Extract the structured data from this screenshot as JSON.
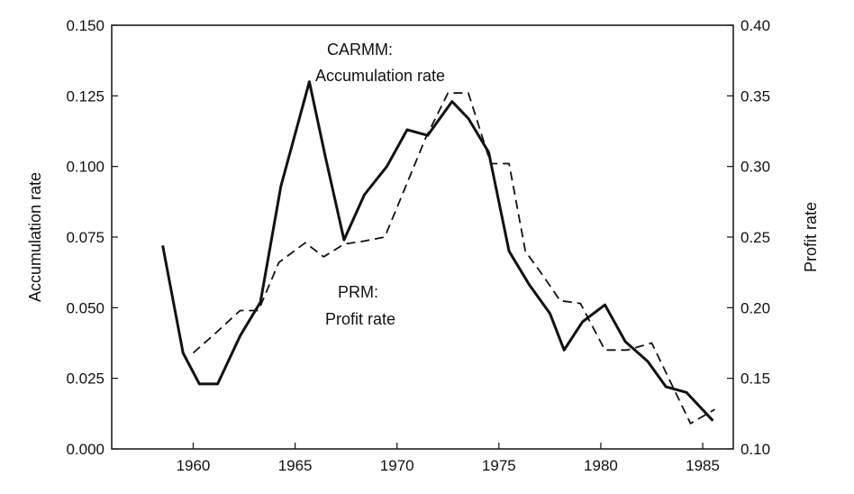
{
  "chart_data": {
    "type": "line",
    "title": "",
    "xlabel": "",
    "ylabel_left": "Accumulation rate",
    "ylabel_right": "Profit rate",
    "xlim": [
      1956,
      1986.5
    ],
    "ylim_left": [
      0.0,
      0.15
    ],
    "ylim_right": [
      0.1,
      0.4
    ],
    "grid": false,
    "x_ticks": [
      1960,
      1965,
      1970,
      1975,
      1980,
      1985
    ],
    "x_tick_labels": [
      "1960",
      "1965",
      "1970",
      "1975",
      "1980",
      "1985"
    ],
    "y_left_ticks": [
      0.0,
      0.025,
      0.05,
      0.075,
      0.1,
      0.125,
      0.15
    ],
    "y_left_tick_labels": [
      "0.000",
      "0.025",
      "0.050",
      "0.075",
      "0.100",
      "0.125",
      "0.150"
    ],
    "y_right_ticks": [
      0.1,
      0.15,
      0.2,
      0.25,
      0.3,
      0.35,
      0.4
    ],
    "y_right_tick_labels": [
      "0.10",
      "0.15",
      "0.20",
      "0.25",
      "0.30",
      "0.35",
      "0.40"
    ],
    "annotations": [
      {
        "lines": [
          "CARMM:",
          "Accumulation rate"
        ]
      },
      {
        "lines": [
          "PRM:",
          "Profit rate"
        ]
      }
    ],
    "series": [
      {
        "axis": "left",
        "style": "solid",
        "x": [
          1958.5,
          1959.5,
          1960.3,
          1961.2,
          1962.3,
          1963.3,
          1964.3,
          1965.7,
          1966.5,
          1967.4,
          1968.4,
          1969.5,
          1970.5,
          1971.5,
          1972.7,
          1973.5,
          1974.5,
          1975.5,
          1976.5,
          1977.5,
          1978.2,
          1979.1,
          1980.2,
          1981.2,
          1982.3,
          1983.2,
          1984.2,
          1985.5
        ],
        "y": [
          0.072,
          0.034,
          0.023,
          0.023,
          0.04,
          0.052,
          0.093,
          0.13,
          0.103,
          0.074,
          0.09,
          0.1,
          0.113,
          0.111,
          0.123,
          0.117,
          0.105,
          0.07,
          0.058,
          0.048,
          0.035,
          0.045,
          0.051,
          0.038,
          0.031,
          0.022,
          0.02,
          0.01
        ]
      },
      {
        "axis": "right",
        "style": "dashed",
        "x": [
          1960.0,
          1961.1,
          1962.3,
          1963.2,
          1964.2,
          1965.5,
          1966.4,
          1967.4,
          1968.3,
          1969.4,
          1970.4,
          1971.4,
          1972.5,
          1973.5,
          1974.6,
          1975.5,
          1976.3,
          1977.2,
          1978.0,
          1979.0,
          1980.2,
          1981.3,
          1982.5,
          1983.5,
          1984.4,
          1985.6
        ],
        "y": [
          0.168,
          0.182,
          0.198,
          0.198,
          0.232,
          0.246,
          0.236,
          0.245,
          0.247,
          0.25,
          0.285,
          0.32,
          0.352,
          0.352,
          0.302,
          0.302,
          0.24,
          0.222,
          0.205,
          0.203,
          0.17,
          0.17,
          0.175,
          0.145,
          0.118,
          0.128
        ]
      }
    ]
  }
}
